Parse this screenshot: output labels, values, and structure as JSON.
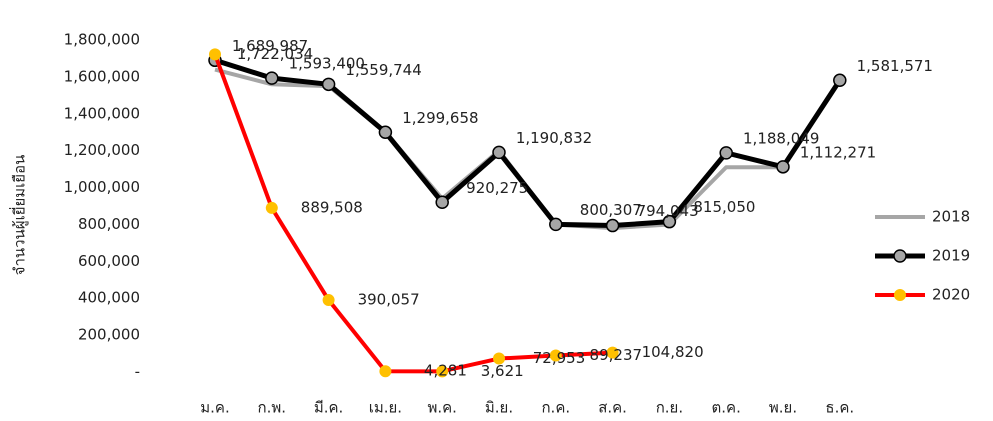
{
  "chart_data": {
    "type": "line",
    "y_label": "จำนวนผู้เยี่ยมเยือน",
    "categories": [
      "ม.ค.",
      "ก.พ.",
      "มี.ค.",
      "เม.ย.",
      "พ.ค.",
      "มิ.ย.",
      "ก.ค.",
      "ส.ค.",
      "ก.ย.",
      "ต.ค.",
      "พ.ย.",
      "ธ.ค."
    ],
    "series": [
      {
        "name": "2018",
        "color": "#a6a6a6",
        "values": [
          1640000,
          1560000,
          1550000,
          1300000,
          940000,
          1200000,
          800000,
          780000,
          800000,
          1110000,
          1110000,
          1580000
        ]
      },
      {
        "name": "2019",
        "color": "#000000",
        "marker_color": "#a6a6a6",
        "values": [
          1689987,
          1593400,
          1559744,
          1299658,
          920275,
          1190832,
          800307,
          794043,
          815050,
          1188049,
          1112271,
          1581571
        ],
        "value_labels": [
          "1,689,987",
          "1,593,400",
          "1,559,744",
          "1,299,658",
          "920,275",
          "1,190,832",
          "800,307",
          "794,043",
          "815,050",
          "1,188,049",
          "1,112,271",
          "1,581,571"
        ]
      },
      {
        "name": "2020",
        "color": "#ff0000",
        "marker_color": "#ffc000",
        "values": [
          1722034,
          889508,
          390057,
          4281,
          3621,
          72953,
          89237,
          104820,
          null,
          null,
          null,
          null
        ],
        "value_labels": [
          "1,722,034",
          "889,508",
          "390,057",
          "4,281",
          "3,621",
          "72,953",
          "89,237",
          "104,820",
          null,
          null,
          null,
          null
        ]
      }
    ],
    "ylim": [
      0,
      1800000
    ],
    "yticks": [
      {
        "value": 0,
        "label": "-"
      },
      {
        "value": 200000,
        "label": "200,000"
      },
      {
        "value": 400000,
        "label": "400,000"
      },
      {
        "value": 600000,
        "label": "600,000"
      },
      {
        "value": 800000,
        "label": "800,000"
      },
      {
        "value": 1000000,
        "label": "1,000,000"
      },
      {
        "value": 1200000,
        "label": "1,200,000"
      },
      {
        "value": 1400000,
        "label": "1,400,000"
      },
      {
        "value": 1600000,
        "label": "1,600,000"
      },
      {
        "value": 1800000,
        "label": "1,800,000"
      }
    ],
    "legend": "right"
  }
}
